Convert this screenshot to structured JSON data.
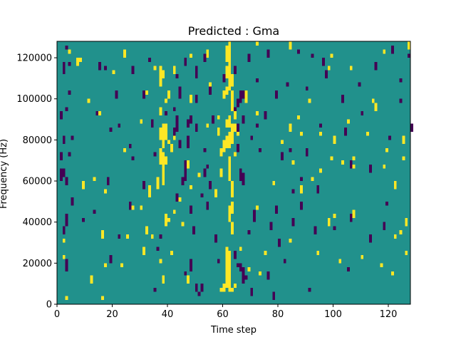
{
  "chart_data": {
    "type": "heatmap",
    "title": "Predicted : Gma",
    "xlabel": "Time step",
    "ylabel": "Frequency (Hz)",
    "xlim": [
      0,
      128
    ],
    "ylim": [
      0,
      128000
    ],
    "x_ticks": [
      0,
      20,
      40,
      60,
      80,
      100,
      120
    ],
    "y_ticks": [
      0,
      20000,
      40000,
      60000,
      80000,
      100000,
      120000
    ],
    "grid": false,
    "colormap": "viridis",
    "background_value": 0,
    "colors": {
      "low": "#440154",
      "mid": "#21918c",
      "high": "#fde725"
    },
    "n_freq_bins": 64,
    "freq_bin_hz": 2000,
    "high_segments": [
      [
        3,
        1,
        2
      ],
      [
        16,
        1,
        2
      ],
      [
        12,
        5,
        7
      ],
      [
        38,
        5,
        7
      ],
      [
        47,
        5,
        7
      ],
      [
        59,
        3,
        4
      ],
      [
        60,
        3,
        5
      ],
      [
        61,
        4,
        11
      ],
      [
        62,
        3,
        12
      ],
      [
        63,
        3,
        4
      ],
      [
        64,
        4,
        5
      ],
      [
        73,
        7,
        8
      ],
      [
        2,
        11,
        12
      ],
      [
        17,
        9,
        10
      ],
      [
        23,
        9,
        10
      ],
      [
        31,
        12,
        14
      ],
      [
        37,
        10,
        11
      ],
      [
        41,
        12,
        13
      ],
      [
        61,
        10,
        14
      ],
      [
        62,
        11,
        13
      ],
      [
        66,
        13,
        14
      ],
      [
        94,
        12,
        13
      ],
      [
        110,
        11,
        12
      ],
      [
        117,
        9,
        10
      ],
      [
        121,
        7,
        8
      ],
      [
        16,
        16,
        18
      ],
      [
        25,
        16,
        17
      ],
      [
        32,
        17,
        19
      ],
      [
        34,
        16,
        17
      ],
      [
        63,
        17,
        20
      ],
      [
        84,
        15,
        16
      ],
      [
        98,
        19,
        21
      ],
      [
        122,
        16,
        17
      ],
      [
        124,
        17,
        18
      ],
      [
        30,
        23,
        24
      ],
      [
        39,
        19,
        22
      ],
      [
        40,
        20,
        21
      ],
      [
        42,
        22,
        23
      ],
      [
        62,
        20,
        24
      ],
      [
        63,
        22,
        25
      ],
      [
        72,
        23,
        24
      ],
      [
        100,
        21,
        22
      ],
      [
        107,
        21,
        23
      ],
      [
        126,
        19,
        21
      ],
      [
        9,
        28,
        30
      ],
      [
        33,
        26,
        29
      ],
      [
        36,
        28,
        31
      ],
      [
        38,
        29,
        34
      ],
      [
        48,
        28,
        29
      ],
      [
        57,
        26,
        28
      ],
      [
        63,
        26,
        30
      ],
      [
        78,
        29,
        30
      ],
      [
        92,
        30,
        31
      ],
      [
        13,
        30,
        31
      ],
      [
        37,
        34,
        38
      ],
      [
        38,
        33,
        37
      ],
      [
        39,
        34,
        36
      ],
      [
        47,
        33,
        35
      ],
      [
        59,
        31,
        33
      ],
      [
        62,
        30,
        36
      ],
      [
        95,
        32,
        33
      ],
      [
        107,
        33,
        34
      ],
      [
        125,
        35,
        36
      ],
      [
        24,
        37,
        38
      ],
      [
        37,
        40,
        43
      ],
      [
        38,
        38,
        44
      ],
      [
        39,
        40,
        44
      ],
      [
        60,
        37,
        40
      ],
      [
        61,
        38,
        41
      ],
      [
        62,
        38,
        42
      ],
      [
        85,
        34,
        35
      ],
      [
        99,
        35,
        36
      ],
      [
        103,
        34,
        35
      ],
      [
        40,
        39,
        40
      ],
      [
        63,
        39,
        43
      ],
      [
        54,
        43,
        44
      ],
      [
        88,
        41,
        42
      ],
      [
        95,
        41,
        42
      ],
      [
        100,
        39,
        41
      ],
      [
        107,
        35,
        36
      ],
      [
        119,
        37,
        38
      ],
      [
        125,
        39,
        41
      ],
      [
        15,
        46,
        47
      ],
      [
        30,
        44,
        45
      ],
      [
        37,
        46,
        48
      ],
      [
        39,
        49,
        50
      ],
      [
        58,
        45,
        46
      ],
      [
        63,
        47,
        50
      ],
      [
        64,
        45,
        47
      ],
      [
        72,
        46,
        47
      ],
      [
        84,
        42,
        44
      ],
      [
        114,
        49,
        50
      ],
      [
        32,
        51,
        52
      ],
      [
        40,
        50,
        52
      ],
      [
        48,
        49,
        51
      ],
      [
        60,
        50,
        52
      ],
      [
        61,
        51,
        53
      ],
      [
        62,
        52,
        56
      ],
      [
        63,
        50,
        52
      ],
      [
        68,
        49,
        52
      ],
      [
        87,
        45,
        46
      ],
      [
        115,
        47,
        49
      ],
      [
        7,
        58,
        60
      ],
      [
        8,
        59,
        60
      ],
      [
        35,
        57,
        58
      ],
      [
        37,
        53,
        58
      ],
      [
        38,
        55,
        57
      ],
      [
        42,
        56,
        58
      ],
      [
        61,
        55,
        58
      ],
      [
        62,
        55,
        60
      ],
      [
        63,
        53,
        56
      ],
      [
        98,
        57,
        58
      ],
      [
        106,
        57,
        58
      ],
      [
        4,
        61,
        62
      ],
      [
        24,
        60,
        62
      ],
      [
        48,
        60,
        61
      ],
      [
        54,
        60,
        62
      ],
      [
        61,
        59,
        63
      ],
      [
        62,
        60,
        64
      ],
      [
        72,
        63,
        64
      ],
      [
        84,
        62,
        64
      ],
      [
        99,
        60,
        61
      ],
      [
        127,
        62,
        64
      ],
      [
        118,
        61,
        62
      ],
      [
        2,
        15,
        16
      ],
      [
        11,
        49,
        50
      ],
      [
        20,
        56,
        57
      ],
      [
        27,
        23,
        24
      ],
      [
        44,
        25,
        26
      ],
      [
        51,
        31,
        32
      ],
      [
        69,
        8,
        9
      ],
      [
        75,
        12,
        13
      ],
      [
        81,
        39,
        40
      ],
      [
        88,
        27,
        29
      ],
      [
        105,
        44,
        45
      ],
      [
        112,
        41,
        42
      ],
      [
        118,
        33,
        34
      ],
      [
        122,
        28,
        30
      ],
      [
        126,
        12,
        13
      ],
      [
        17,
        27,
        28
      ],
      [
        45,
        19,
        20
      ],
      [
        55,
        53,
        54
      ],
      [
        91,
        49,
        50
      ],
      [
        102,
        10,
        11
      ],
      [
        41,
        37,
        39
      ],
      [
        42,
        40,
        41
      ],
      [
        59,
        36,
        38
      ],
      [
        64,
        36,
        37
      ],
      [
        58,
        41,
        43
      ],
      [
        65,
        41,
        42
      ],
      [
        61,
        43,
        45
      ],
      [
        62,
        43,
        46
      ],
      [
        63,
        42,
        44
      ],
      [
        64,
        42,
        44
      ]
    ],
    "low_segments": [
      [
        35,
        3,
        4
      ],
      [
        50,
        3,
        5
      ],
      [
        51,
        2,
        3
      ],
      [
        52,
        3,
        5
      ],
      [
        67,
        5,
        7
      ],
      [
        68,
        6,
        7
      ],
      [
        70,
        2,
        4
      ],
      [
        78,
        1,
        3
      ],
      [
        91,
        3,
        4
      ],
      [
        58,
        10,
        11
      ],
      [
        80,
        14,
        16
      ],
      [
        3,
        8,
        11
      ],
      [
        19,
        10,
        12
      ],
      [
        48,
        8,
        11
      ],
      [
        46,
        7,
        8
      ],
      [
        65,
        9,
        10
      ],
      [
        66,
        8,
        10
      ],
      [
        64,
        11,
        13
      ],
      [
        67,
        7,
        9
      ],
      [
        76,
        6,
        8
      ],
      [
        82,
        10,
        11
      ],
      [
        105,
        8,
        9
      ],
      [
        2,
        17,
        19
      ],
      [
        3,
        19,
        22
      ],
      [
        22,
        16,
        17
      ],
      [
        37,
        16,
        17
      ],
      [
        49,
        17,
        19
      ],
      [
        57,
        15,
        17
      ],
      [
        69,
        17,
        18
      ],
      [
        77,
        18,
        20
      ],
      [
        85,
        19,
        21
      ],
      [
        93,
        17,
        19
      ],
      [
        113,
        15,
        17
      ],
      [
        5,
        24,
        26
      ],
      [
        13,
        22,
        23
      ],
      [
        26,
        23,
        25
      ],
      [
        43,
        25,
        27
      ],
      [
        48,
        22,
        24
      ],
      [
        54,
        23,
        25
      ],
      [
        71,
        20,
        23
      ],
      [
        79,
        22,
        24
      ],
      [
        88,
        23,
        25
      ],
      [
        106,
        20,
        22
      ],
      [
        118,
        18,
        20
      ],
      [
        1,
        30,
        33
      ],
      [
        2,
        31,
        33
      ],
      [
        3,
        29,
        31
      ],
      [
        18,
        29,
        31
      ],
      [
        31,
        28,
        30
      ],
      [
        45,
        29,
        31
      ],
      [
        46,
        30,
        33
      ],
      [
        53,
        31,
        33
      ],
      [
        55,
        28,
        30
      ],
      [
        66,
        30,
        33
      ],
      [
        67,
        29,
        32
      ],
      [
        88,
        30,
        31
      ],
      [
        94,
        27,
        29
      ],
      [
        1,
        35,
        37
      ],
      [
        4,
        36,
        37
      ],
      [
        27,
        35,
        36
      ],
      [
        35,
        36,
        37
      ],
      [
        46,
        33,
        35
      ],
      [
        54,
        33,
        34
      ],
      [
        73,
        37,
        38
      ],
      [
        81,
        35,
        37
      ],
      [
        90,
        36,
        38
      ],
      [
        106,
        33,
        35
      ],
      [
        113,
        32,
        34
      ],
      [
        2,
        39,
        41
      ],
      [
        5,
        40,
        41
      ],
      [
        19,
        42,
        43
      ],
      [
        34,
        43,
        44
      ],
      [
        43,
        42,
        44
      ],
      [
        44,
        38,
        40
      ],
      [
        47,
        38,
        41
      ],
      [
        50,
        42,
        44
      ],
      [
        53,
        37,
        38
      ],
      [
        72,
        43,
        44
      ],
      [
        84,
        37,
        38
      ],
      [
        120,
        40,
        41
      ],
      [
        128,
        42,
        44
      ],
      [
        1,
        45,
        47
      ],
      [
        3,
        47,
        48
      ],
      [
        14,
        46,
        47
      ],
      [
        22,
        43,
        44
      ],
      [
        34,
        44,
        45
      ],
      [
        47,
        43,
        45
      ],
      [
        48,
        44,
        46
      ],
      [
        56,
        44,
        46
      ],
      [
        65,
        42,
        44
      ],
      [
        67,
        44,
        46
      ],
      [
        75,
        45,
        47
      ],
      [
        95,
        43,
        44
      ],
      [
        104,
        41,
        43
      ],
      [
        4,
        51,
        52
      ],
      [
        21,
        50,
        52
      ],
      [
        31,
        50,
        52
      ],
      [
        44,
        50,
        53
      ],
      [
        50,
        49,
        51
      ],
      [
        55,
        51,
        53
      ],
      [
        66,
        49,
        52
      ],
      [
        67,
        50,
        52
      ],
      [
        79,
        50,
        52
      ],
      [
        90,
        52,
        53
      ],
      [
        103,
        49,
        51
      ],
      [
        124,
        49,
        50
      ],
      [
        2,
        56,
        59
      ],
      [
        15,
        57,
        59
      ],
      [
        27,
        56,
        58
      ],
      [
        43,
        55,
        56
      ],
      [
        50,
        55,
        58
      ],
      [
        60,
        54,
        56
      ],
      [
        64,
        56,
        58
      ],
      [
        72,
        54,
        55
      ],
      [
        83,
        53,
        54
      ],
      [
        97,
        55,
        57
      ],
      [
        109,
        53,
        54
      ],
      [
        115,
        57,
        59
      ],
      [
        3,
        62,
        63
      ],
      [
        17,
        57,
        58
      ],
      [
        33,
        59,
        60
      ],
      [
        46,
        58,
        60
      ],
      [
        53,
        59,
        61
      ],
      [
        69,
        59,
        61
      ],
      [
        76,
        60,
        62
      ],
      [
        87,
        61,
        62
      ],
      [
        96,
        58,
        60
      ],
      [
        121,
        61,
        63
      ],
      [
        127,
        60,
        61
      ],
      [
        4,
        58,
        59
      ],
      [
        9,
        20,
        21
      ],
      [
        26,
        38,
        39
      ],
      [
        39,
        46,
        47
      ],
      [
        52,
        26,
        27
      ],
      [
        70,
        40,
        41
      ],
      [
        85,
        27,
        28
      ],
      [
        100,
        18,
        19
      ],
      [
        110,
        46,
        47
      ],
      [
        119,
        24,
        25
      ],
      [
        92,
        60,
        61
      ],
      [
        124,
        54,
        55
      ],
      [
        36,
        13,
        14
      ],
      [
        42,
        41,
        43
      ],
      [
        42,
        47,
        48
      ],
      [
        43,
        44,
        46
      ],
      [
        65,
        37,
        39
      ],
      [
        64,
        46,
        48
      ],
      [
        65,
        48,
        50
      ]
    ]
  }
}
